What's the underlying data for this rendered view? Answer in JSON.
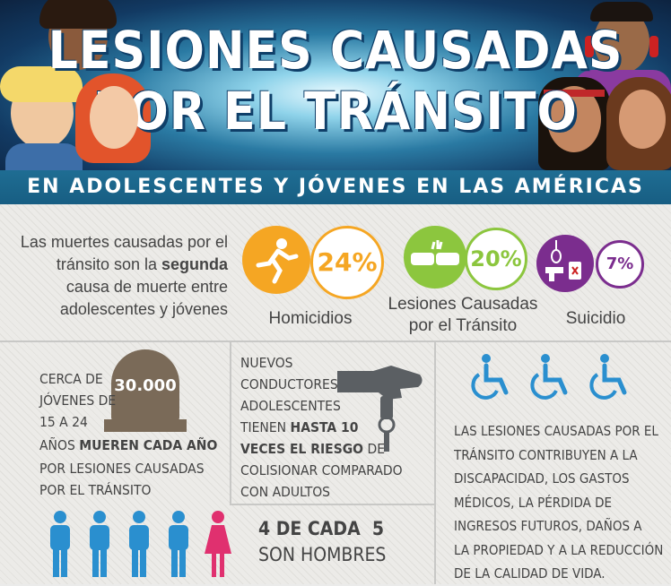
{
  "header": {
    "title_line1": "LESIONES CAUSADAS",
    "title_line2": "POR EL TRÁNSITO",
    "subtitle": "EN ADOLESCENTES Y JÓVENES EN LAS AMÉRICAS"
  },
  "intro": {
    "text_before": "Las muertes causadas por el tránsito son la ",
    "text_bold": "segunda",
    "text_after": " causa de muerte entre adolescentes y jóvenes"
  },
  "stats": [
    {
      "percent": "24%",
      "label": "Homicidios",
      "icon": "running-person-icon",
      "color": "#f5a623"
    },
    {
      "percent": "20%",
      "label": "Lesiones Causadas por el Tránsito",
      "icon": "car-crash-icon",
      "color": "#8cc63e"
    },
    {
      "percent": "7%",
      "label": "Suicidio",
      "icon": "noose-gun-poison-icon",
      "color": "#7b2d8e"
    }
  ],
  "deaths": {
    "tomb_number": "30.000",
    "line1": "CERCA DE",
    "line2": "JÓVENES DE",
    "line3": "15 A 24",
    "line4_plain": "AÑOS ",
    "line4_bold": "MUEREN CADA AÑO",
    "line5": "POR LESIONES CAUSADAS",
    "line6": "POR EL TRÁNSITO"
  },
  "drivers": {
    "l1": "NUEVOS",
    "l2": "CONDUCTORES",
    "l3": "ADOLESCENTES",
    "l4_plain": "TIENEN ",
    "l4_bold": "HASTA 10",
    "l5_bold": "VECES EL RIESGO",
    "l5_plain": " DE",
    "l6": "COLISIONAR COMPARADO",
    "l7": "CON ADULTOS",
    "icon": "hand-with-car-key-icon"
  },
  "gender": {
    "bold": "4 DE CADA  5",
    "plain": "SON HOMBRES",
    "male_color": "#2a8fcf",
    "female_color": "#e0306f"
  },
  "disability": {
    "icon": "wheelchair-icon",
    "color": "#2a8fcf",
    "lines": [
      "LAS LESIONES CAUSADAS POR EL",
      "TRÁNSITO CONTRIBUYEN A LA",
      "DISCAPACIDAD, LOS GASTOS",
      "MÉDICOS, LA PÉRDIDA DE",
      "INGRESOS FUTUROS, DAÑOS A",
      "LA PROPIEDAD Y A LA REDUCCIÓN",
      "DE LA CALIDAD DE VIDA."
    ]
  }
}
